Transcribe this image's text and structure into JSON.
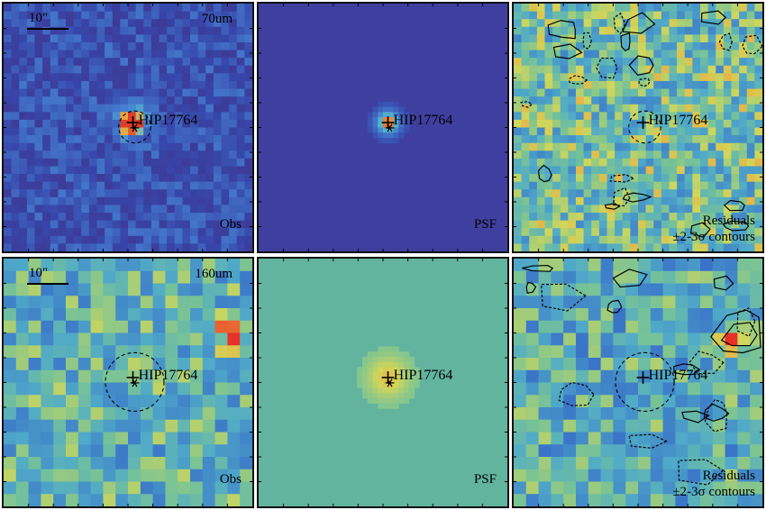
{
  "panels": [
    {
      "id": "r1c1",
      "row": 0,
      "col": 0,
      "label": "Obs",
      "band": "70um",
      "target": "HIP17764",
      "scale": "10\"",
      "type": "obs70",
      "note": ""
    },
    {
      "id": "r1c2",
      "row": 0,
      "col": 1,
      "label": "PSF",
      "band": "",
      "target": "HIP17764",
      "scale": "",
      "type": "psf70",
      "note": ""
    },
    {
      "id": "r1c3",
      "row": 0,
      "col": 2,
      "label": "Residuals",
      "band": "",
      "target": "HIP17764",
      "scale": "",
      "type": "res70",
      "note": "±2-3σ contours"
    },
    {
      "id": "r2c1",
      "row": 1,
      "col": 0,
      "label": "Obs",
      "band": "160um",
      "target": "HIP17764",
      "scale": "10\"",
      "type": "obs160",
      "note": ""
    },
    {
      "id": "r2c2",
      "row": 1,
      "col": 1,
      "label": "PSF",
      "band": "",
      "target": "HIP17764",
      "scale": "",
      "type": "psf160",
      "note": ""
    },
    {
      "id": "r2c3",
      "row": 1,
      "col": 2,
      "label": "Residuals",
      "band": "",
      "target": "HIP17764",
      "scale": "",
      "type": "res160",
      "note": "±2-3σ contours"
    }
  ],
  "colors": {
    "border": "#111111",
    "psf70_bg": "#3f3fa0",
    "psf160_bg": "#62b49e"
  }
}
